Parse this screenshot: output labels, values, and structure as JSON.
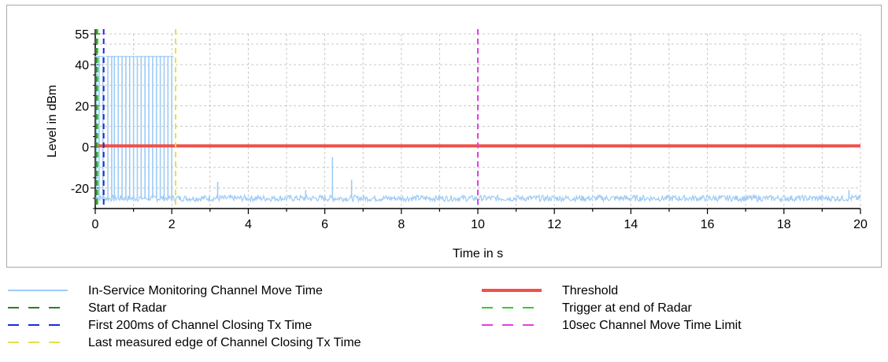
{
  "chart_data": {
    "type": "line",
    "title": "",
    "xlabel": "Time in s",
    "ylabel": "Level in dBm",
    "xlim": [
      0,
      20
    ],
    "ylim": [
      -30,
      55
    ],
    "x_ticks": [
      "0",
      "2",
      "4",
      "6",
      "8",
      "10",
      "12",
      "14",
      "16",
      "18",
      "20"
    ],
    "y_ticks": [
      "-20",
      "0",
      "20",
      "40",
      "55"
    ],
    "grid": true,
    "legend_position": "bottom",
    "series": [
      {
        "name": "In-Service Monitoring Channel Move Time",
        "style": "solid",
        "color": "#9ecbf5",
        "baseline": -25,
        "pulse_times": [
          0.03,
          0.1,
          0.2,
          0.33,
          0.43,
          0.5,
          0.6,
          0.7,
          0.8,
          0.9,
          1.0,
          1.1,
          1.2,
          1.3,
          1.4,
          1.5,
          1.6,
          1.7,
          1.8,
          1.9,
          2.0
        ],
        "pulse_level": 44,
        "spikes": [
          {
            "x": 3.2,
            "y": -17
          },
          {
            "x": 5.5,
            "y": -21
          },
          {
            "x": 6.2,
            "y": -5
          },
          {
            "x": 6.7,
            "y": -16
          },
          {
            "x": 19.7,
            "y": -21
          }
        ]
      },
      {
        "name": "Threshold",
        "style": "solid",
        "color": "#f0504a",
        "y": 0.5
      },
      {
        "name": "Start of Radar",
        "style": "dashed",
        "color": "#2e7d24",
        "x": 0.02
      },
      {
        "name": "Trigger at end of Radar",
        "style": "dashed",
        "color": "#33cc33",
        "x": 0.06
      },
      {
        "name": "First 200ms of Channel Closing Tx Time",
        "style": "dashed",
        "color": "#1a2bd6",
        "x": 0.22
      },
      {
        "name": "10sec Channel Move Time Limit",
        "style": "dashed",
        "color": "#e040e0",
        "x": 10
      },
      {
        "name": "Last measured edge of Channel Closing Tx Time",
        "style": "dashed",
        "color": "#e6e04a",
        "x": 2.1
      }
    ]
  }
}
